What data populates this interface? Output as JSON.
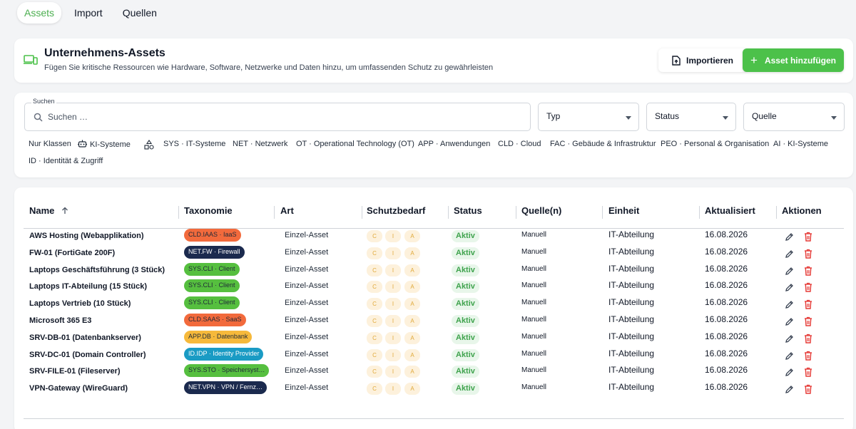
{
  "tabs": [
    {
      "label": "Assets",
      "active": true
    },
    {
      "label": "Import",
      "active": false
    },
    {
      "label": "Quellen",
      "active": false
    }
  ],
  "header": {
    "icon": "devices-icon",
    "title": "Unternehmens-Assets",
    "subtitle": "Fügen Sie kritische Ressourcen wie Hardware, Software, Netzwerke und Daten hinzu, um umfassenden Schutz zu gewährleisten",
    "import_label": "Importieren",
    "add_label": "Asset hinzufügen",
    "accent_color": "#4cc14a"
  },
  "filters": {
    "search_label": "Suchen",
    "search_placeholder": "Suchen …",
    "type_label": "Typ",
    "status_label": "Status",
    "source_label": "Quelle",
    "chips": [
      {
        "label": "Nur Klassen"
      },
      {
        "label": "KI-Systeme",
        "icon": "robot-icon"
      },
      {
        "label": "",
        "icon": "shapes-icon"
      },
      {
        "label": "SYS · IT-Systeme"
      },
      {
        "label": "NET · Netzwerk"
      },
      {
        "label": "OT · Operational Technology (OT)"
      },
      {
        "label": "APP · Anwendungen"
      },
      {
        "label": "CLD · Cloud"
      },
      {
        "label": "FAC · Gebäude & Infrastruktur"
      },
      {
        "label": "PEO · Personal & Organisation"
      },
      {
        "label": "AI · KI-Systeme"
      },
      {
        "label": "ID · Identität & Zugriff"
      }
    ]
  },
  "table": {
    "columns": [
      "Name",
      "Taxonomie",
      "Art",
      "Schutzbedarf",
      "Status",
      "Quelle(n)",
      "Einheit",
      "Aktualisiert",
      "Aktionen"
    ],
    "sort_icon": "arrow-up-icon",
    "cia_labels": [
      "C",
      "I",
      "A"
    ],
    "rows": [
      {
        "name": "AWS Hosting (Webapplikation)",
        "taxonomy": "CLD.IAAS · IaaS",
        "tax_color": "#f26a3c",
        "tax_text": "#1f2937",
        "art": "Einzel-Asset",
        "status": "Aktiv",
        "source": "Manuell",
        "unit": "IT-Abteilung",
        "updated": "16.08.2026"
      },
      {
        "name": "FW-01 (FortiGate 200F)",
        "taxonomy": "NET.FW · Firewall",
        "tax_color": "#1b2a4e",
        "tax_text": "#ffffff",
        "art": "Einzel-Asset",
        "status": "Aktiv",
        "source": "Manuell",
        "unit": "IT-Abteilung",
        "updated": "16.08.2026"
      },
      {
        "name": "Laptops Geschäftsführung (3 Stück)",
        "taxonomy": "SYS.CLI · Client",
        "tax_color": "#56bf3f",
        "tax_text": "#1f2937",
        "art": "Einzel-Asset",
        "status": "Aktiv",
        "source": "Manuell",
        "unit": "IT-Abteilung",
        "updated": "16.08.2026"
      },
      {
        "name": "Laptops IT-Abteilung (15 Stück)",
        "taxonomy": "SYS.CLI · Client",
        "tax_color": "#56bf3f",
        "tax_text": "#1f2937",
        "art": "Einzel-Asset",
        "status": "Aktiv",
        "source": "Manuell",
        "unit": "IT-Abteilung",
        "updated": "16.08.2026"
      },
      {
        "name": "Laptops Vertrieb (10 Stück)",
        "taxonomy": "SYS.CLI · Client",
        "tax_color": "#56bf3f",
        "tax_text": "#1f2937",
        "art": "Einzel-Asset",
        "status": "Aktiv",
        "source": "Manuell",
        "unit": "IT-Abteilung",
        "updated": "16.08.2026"
      },
      {
        "name": "Microsoft 365 E3",
        "taxonomy": "CLD.SAAS · SaaS",
        "tax_color": "#f26a3c",
        "tax_text": "#1f2937",
        "art": "Einzel-Asset",
        "status": "Aktiv",
        "source": "Manuell",
        "unit": "IT-Abteilung",
        "updated": "16.08.2026"
      },
      {
        "name": "SRV-DB-01 (Datenbankserver)",
        "taxonomy": "APP.DB · Datenbank",
        "tax_color": "#f6b93b",
        "tax_text": "#1f2937",
        "art": "Einzel-Asset",
        "status": "Aktiv",
        "source": "Manuell",
        "unit": "IT-Abteilung",
        "updated": "16.08.2026"
      },
      {
        "name": "SRV-DC-01 (Domain Controller)",
        "taxonomy": "ID.IDP · Identity Provider",
        "tax_color": "#1a9bc4",
        "tax_text": "#ffffff",
        "art": "Einzel-Asset",
        "status": "Aktiv",
        "source": "Manuell",
        "unit": "IT-Abteilung",
        "updated": "16.08.2026"
      },
      {
        "name": "SRV-FILE-01 (Fileserver)",
        "taxonomy": "SYS.STO · Speichersyst…",
        "tax_color": "#56bf3f",
        "tax_text": "#1f2937",
        "art": "Einzel-Asset",
        "status": "Aktiv",
        "source": "Manuell",
        "unit": "IT-Abteilung",
        "updated": "16.08.2026"
      },
      {
        "name": "VPN-Gateway (WireGuard)",
        "taxonomy": "NET.VPN · VPN / Fernz…",
        "tax_color": "#1b2a4e",
        "tax_text": "#ffffff",
        "art": "Einzel-Asset",
        "status": "Aktiv",
        "source": "Manuell",
        "unit": "IT-Abteilung",
        "updated": "16.08.2026"
      }
    ]
  }
}
